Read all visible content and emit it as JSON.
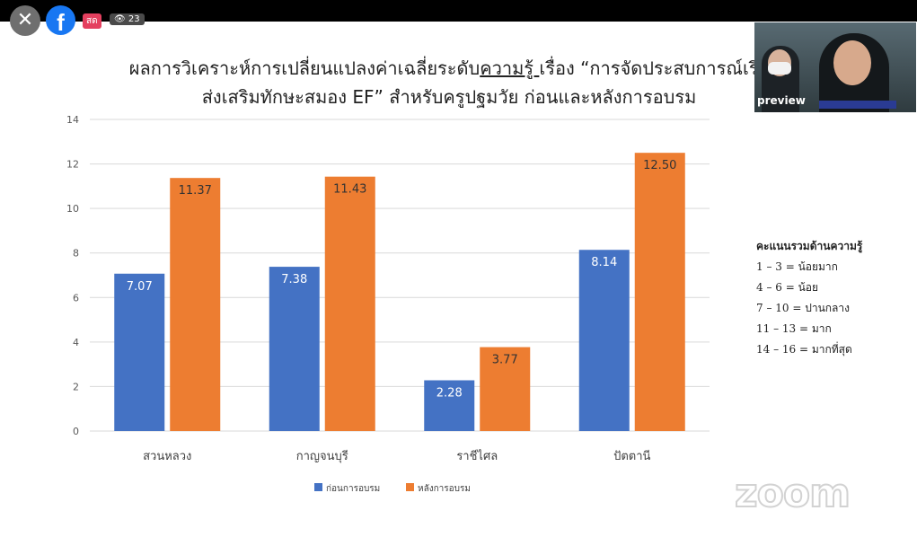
{
  "overlay": {
    "close_icon": "close-icon",
    "fb_icon": "facebook-icon",
    "live_badge": "สด",
    "viewer_count": "23",
    "preview_label": "preview",
    "zoom_logo": "zoom"
  },
  "title": {
    "line1_prefix": "ผลการวิเคราะห์การเปลี่ยนแปลงค่าเฉลี่ยระดับ",
    "line1_underlined": "ความรู้ ",
    "line1_suffix": "เรื่อง “การจัดประสบการณ์เรีย",
    "line2": "ส่งเสริมทักษะสมอง EF” สำหรับครูปฐมวัย ก่อนและหลังการอบรม"
  },
  "score_legend": {
    "header": "คะแนนรวมด้านความรู้",
    "items": [
      "1 – 3 = น้อยมาก",
      "4 – 6 = น้อย",
      "7 – 10 = ปานกลาง",
      "11 – 13 = มาก",
      "14 – 16 = มากที่สุด"
    ]
  },
  "chart_data": {
    "type": "bar",
    "categories": [
      "สวนหลวง",
      "กาญจนบุรี",
      "ราชีไศล",
      "ปัตตานี"
    ],
    "series": [
      {
        "name": "ก่อนการอบรม",
        "values": [
          7.07,
          7.38,
          2.28,
          8.14
        ],
        "labels": [
          "7.07",
          "7.38",
          "2.28",
          "8.14"
        ],
        "color": "#4472c4"
      },
      {
        "name": "หลังการอบรม",
        "values": [
          11.37,
          11.43,
          3.77,
          12.5
        ],
        "labels": [
          "11.37",
          "11.43",
          "3.77",
          "12.50"
        ],
        "color": "#ed7d31"
      }
    ],
    "ylim": [
      0,
      14
    ],
    "yticks": [
      "0",
      "2",
      "4",
      "6",
      "8",
      "10",
      "12",
      "14"
    ],
    "grid": true,
    "legend_position": "bottom"
  }
}
